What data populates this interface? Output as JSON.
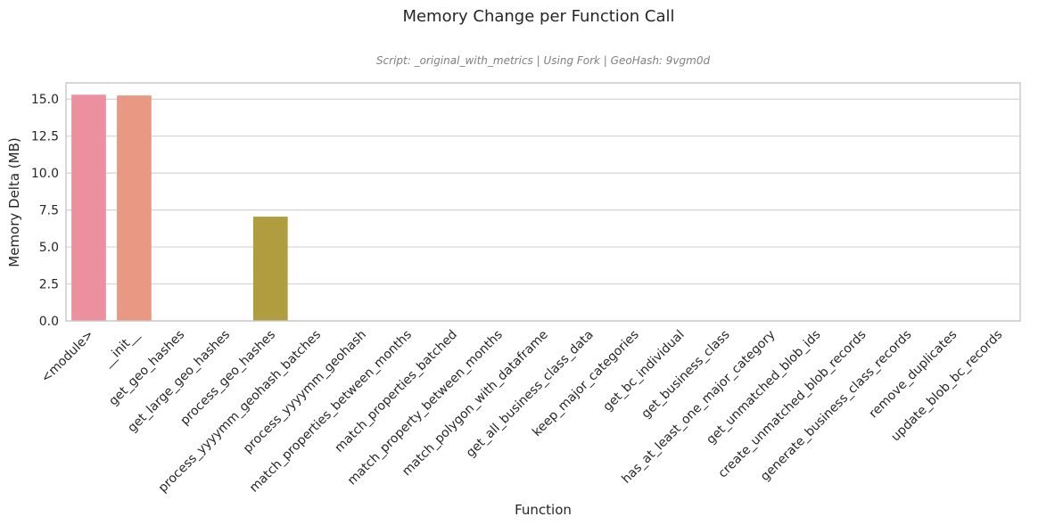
{
  "chart_data": {
    "type": "bar",
    "title": "Memory Change per Function Call",
    "subtitle": "Script: _original_with_metrics | Using Fork | GeoHash: 9vgm0d",
    "xlabel": "Function",
    "ylabel": "Memory Delta (MB)",
    "ylim": [
      0,
      16.1
    ],
    "yticks": [
      "0.0",
      "2.5",
      "5.0",
      "7.5",
      "10.0",
      "12.5",
      "15.0"
    ],
    "grid": true,
    "categories": [
      "<module>",
      "__init__",
      "get_geo_hashes",
      "get_large_geo_hashes",
      "process_geo_hashes",
      "process_yyyymm_geohash_batches",
      "process_yyyymm_geohash",
      "match_properties_between_months",
      "match_properties_batched",
      "match_property_between_months",
      "match_polygon_with_dataframe",
      "get_all_business_class_data",
      "keep_major_categories",
      "get_bc_individual",
      "get_business_class",
      "has_at_least_one_major_category",
      "get_unmatched_blob_ids",
      "create_unmatched_blob_records",
      "generate_business_class_records",
      "remove_duplicates",
      "update_blob_bc_records"
    ],
    "values": [
      15.3,
      15.25,
      0,
      0,
      7.05,
      0,
      0,
      0,
      0,
      0,
      0,
      0,
      0,
      0,
      0,
      0,
      0,
      0,
      0,
      0,
      0
    ],
    "bar_colors": [
      "#ec909f",
      "#e99883",
      "#d5a356",
      "#c1a63e",
      "#b09d3f",
      "#9cae3d",
      "#7fb63c",
      "#4eb959",
      "#3cba84",
      "#3cb79b",
      "#3db5a9",
      "#3eb2b8",
      "#3fafc6",
      "#44a8d6",
      "#6f9ee4",
      "#988fe6",
      "#b883e6",
      "#d27bd8",
      "#e378c4",
      "#ec7fb0",
      "#ee86a0"
    ]
  }
}
